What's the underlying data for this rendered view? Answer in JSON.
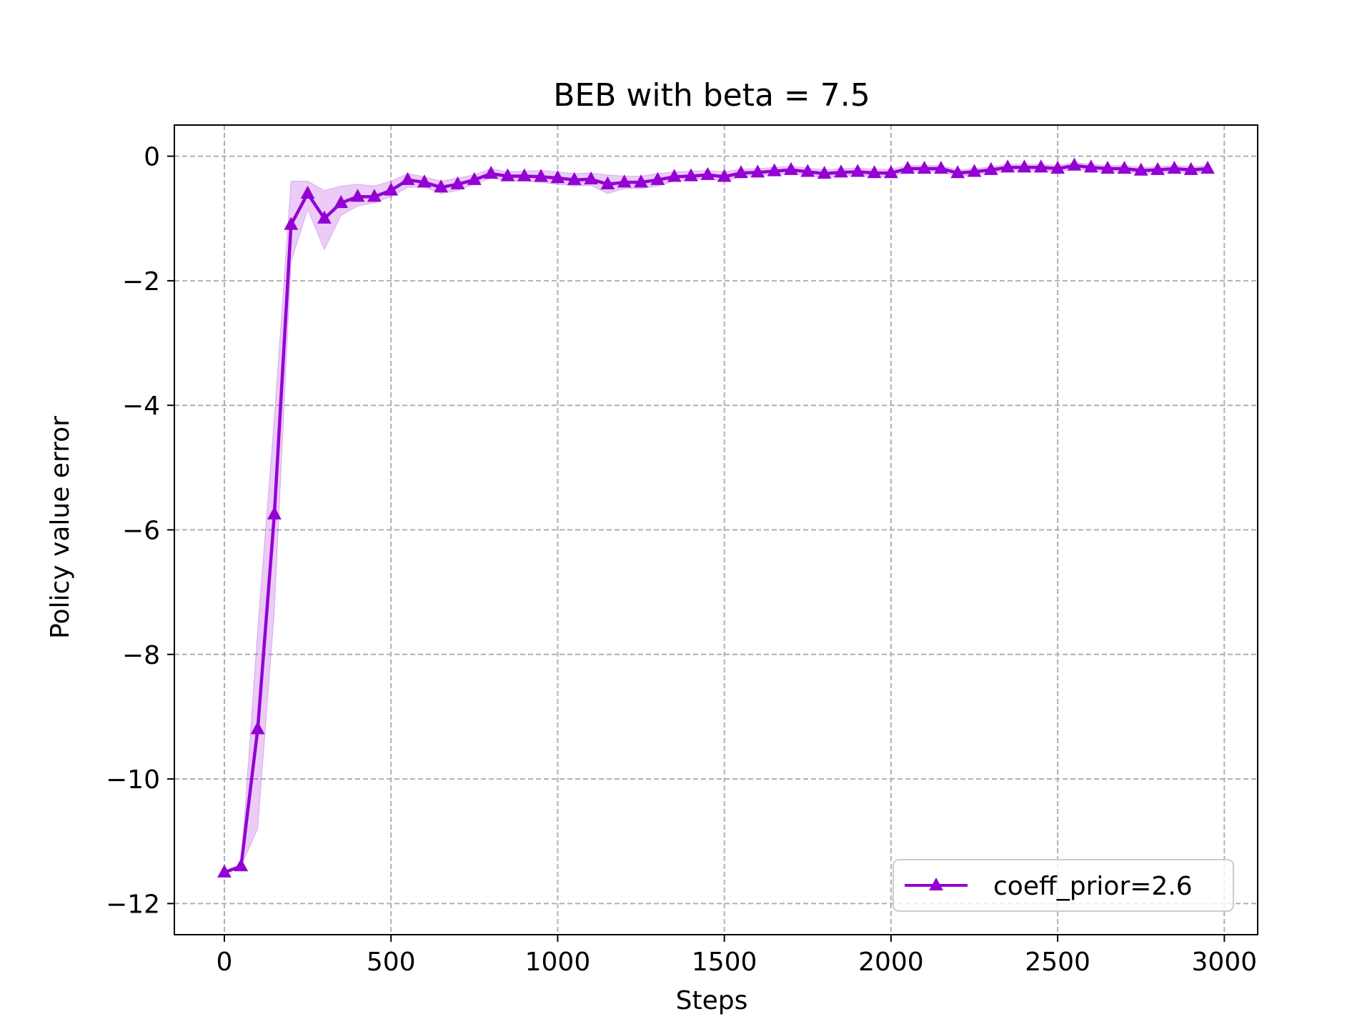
{
  "chart_data": {
    "type": "line",
    "title": "BEB with beta = 7.5",
    "xlabel": "Steps",
    "ylabel": "Policy value error",
    "xlim": [
      -150,
      3100
    ],
    "ylim": [
      -12.5,
      0.5
    ],
    "xticks": [
      0,
      500,
      1000,
      1500,
      2000,
      2500,
      3000
    ],
    "xtick_labels": [
      "0",
      "500",
      "1000",
      "1500",
      "2000",
      "2500",
      "3000"
    ],
    "yticks": [
      0,
      -2,
      -4,
      -6,
      -8,
      -10,
      -12
    ],
    "ytick_labels": [
      "0",
      "−2",
      "−4",
      "−6",
      "−8",
      "−10",
      "−12"
    ],
    "grid": true,
    "legend_position": "lower-right",
    "series": [
      {
        "name": "coeff_prior=2.6",
        "color": "#9400d3",
        "marker": "triangle-up",
        "x": [
          0,
          50,
          100,
          150,
          200,
          250,
          300,
          350,
          400,
          450,
          500,
          550,
          600,
          650,
          700,
          750,
          800,
          850,
          900,
          950,
          1000,
          1050,
          1100,
          1150,
          1200,
          1250,
          1300,
          1350,
          1400,
          1450,
          1500,
          1550,
          1600,
          1650,
          1700,
          1750,
          1800,
          1850,
          1900,
          1950,
          2000,
          2050,
          2100,
          2150,
          2200,
          2250,
          2300,
          2350,
          2400,
          2450,
          2500,
          2550,
          2600,
          2650,
          2700,
          2750,
          2800,
          2850,
          2900,
          2950
        ],
        "y": [
          -11.5,
          -11.4,
          -9.2,
          -5.75,
          -1.1,
          -0.6,
          -1.0,
          -0.75,
          -0.65,
          -0.65,
          -0.55,
          -0.38,
          -0.42,
          -0.5,
          -0.45,
          -0.38,
          -0.28,
          -0.32,
          -0.32,
          -0.33,
          -0.35,
          -0.38,
          -0.37,
          -0.45,
          -0.42,
          -0.42,
          -0.38,
          -0.33,
          -0.32,
          -0.3,
          -0.33,
          -0.27,
          -0.26,
          -0.24,
          -0.22,
          -0.25,
          -0.28,
          -0.26,
          -0.25,
          -0.27,
          -0.27,
          -0.2,
          -0.2,
          -0.2,
          -0.27,
          -0.25,
          -0.22,
          -0.18,
          -0.18,
          -0.18,
          -0.2,
          -0.15,
          -0.18,
          -0.2,
          -0.2,
          -0.23,
          -0.22,
          -0.2,
          -0.22,
          -0.2
        ],
        "lower": [
          -11.5,
          -11.4,
          -10.8,
          -7.3,
          -1.7,
          -0.85,
          -1.5,
          -0.95,
          -0.8,
          -0.75,
          -0.65,
          -0.5,
          -0.5,
          -0.6,
          -0.55,
          -0.45,
          -0.35,
          -0.4,
          -0.4,
          -0.42,
          -0.45,
          -0.48,
          -0.47,
          -0.6,
          -0.52,
          -0.52,
          -0.48,
          -0.4,
          -0.38,
          -0.36,
          -0.4,
          -0.33,
          -0.31,
          -0.3,
          -0.28,
          -0.31,
          -0.34,
          -0.32,
          -0.31,
          -0.33,
          -0.33,
          -0.25,
          -0.25,
          -0.25,
          -0.32,
          -0.3,
          -0.27,
          -0.23,
          -0.23,
          -0.23,
          -0.25,
          -0.2,
          -0.23,
          -0.25,
          -0.25,
          -0.28,
          -0.27,
          -0.25,
          -0.27,
          -0.25
        ],
        "upper": [
          -11.5,
          -11.4,
          -7.6,
          -4.2,
          -0.4,
          -0.4,
          -0.55,
          -0.48,
          -0.45,
          -0.48,
          -0.4,
          -0.28,
          -0.33,
          -0.4,
          -0.35,
          -0.3,
          -0.2,
          -0.25,
          -0.24,
          -0.23,
          -0.25,
          -0.28,
          -0.27,
          -0.3,
          -0.32,
          -0.32,
          -0.28,
          -0.25,
          -0.24,
          -0.23,
          -0.25,
          -0.21,
          -0.2,
          -0.18,
          -0.16,
          -0.19,
          -0.22,
          -0.2,
          -0.19,
          -0.21,
          -0.21,
          -0.15,
          -0.15,
          -0.15,
          -0.22,
          -0.2,
          -0.17,
          -0.13,
          -0.13,
          -0.13,
          -0.15,
          -0.1,
          -0.13,
          -0.15,
          -0.15,
          -0.18,
          -0.17,
          -0.15,
          -0.17,
          -0.15
        ]
      }
    ]
  }
}
